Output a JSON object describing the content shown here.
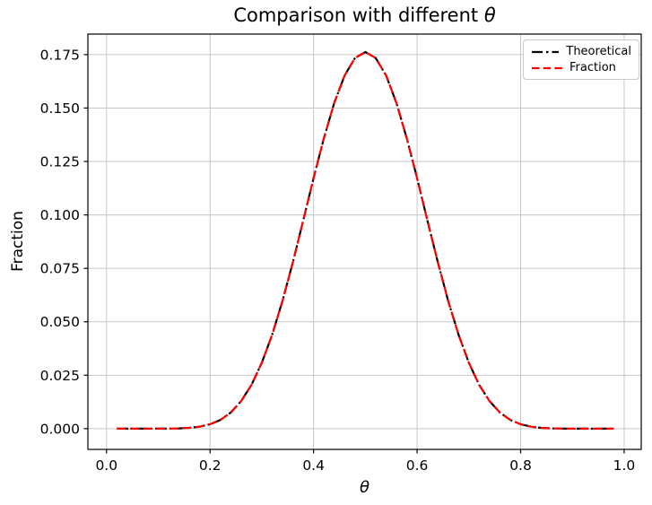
{
  "title": {
    "prefix": "Comparison with different ",
    "symbol": "θ"
  },
  "chart_data": {
    "type": "line",
    "title": "Comparison with different θ",
    "xlabel": "θ",
    "ylabel": "Fraction",
    "xlim": [
      -0.036,
      1.033
    ],
    "ylim": [
      -0.0097,
      0.1846
    ],
    "grid": true,
    "grid_color": "#c6c6c6",
    "spine_color": "#000000",
    "background": "#ffffff",
    "legend_position": "upper right",
    "xticks": [
      0.0,
      0.2,
      0.4,
      0.6,
      0.8,
      1.0
    ],
    "xtick_labels": [
      "0.0",
      "0.2",
      "0.4",
      "0.6",
      "0.8",
      "1.0"
    ],
    "yticks": [
      0.0,
      0.025,
      0.05,
      0.075,
      0.1,
      0.125,
      0.15,
      0.175
    ],
    "ytick_labels": [
      "0.000",
      "0.025",
      "0.050",
      "0.075",
      "0.100",
      "0.125",
      "0.150",
      "0.175"
    ],
    "x": [
      0.02,
      0.04,
      0.06,
      0.08,
      0.1,
      0.12,
      0.14,
      0.16,
      0.18,
      0.2,
      0.22,
      0.24,
      0.26,
      0.28,
      0.3,
      0.32,
      0.34,
      0.36,
      0.38,
      0.4,
      0.42,
      0.44,
      0.46,
      0.48,
      0.5,
      0.52,
      0.54,
      0.56,
      0.58,
      0.6,
      0.62,
      0.64,
      0.66,
      0.68,
      0.7,
      0.72,
      0.74,
      0.76,
      0.78,
      0.8,
      0.82,
      0.84,
      0.86,
      0.88,
      0.9,
      0.92,
      0.94,
      0.96,
      0.98
    ],
    "series": [
      {
        "name": "Theoretical",
        "color": "#000000",
        "linestyle": "dashdot",
        "linewidth": 2.2,
        "values": [
          0,
          0,
          0,
          1e-06,
          6e-06,
          3.2e-05,
          0.000118,
          0.000355,
          0.000906,
          0.002031,
          0.00409,
          0.007529,
          0.012853,
          0.020475,
          0.030817,
          0.043971,
          0.059813,
          0.077888,
          0.097353,
          0.117142,
          0.135953,
          0.152412,
          0.165239,
          0.173397,
          0.176197,
          0.173397,
          0.165239,
          0.152412,
          0.135953,
          0.117142,
          0.097353,
          0.077888,
          0.059813,
          0.043971,
          0.030817,
          0.020475,
          0.012853,
          0.007529,
          0.00409,
          0.002031,
          0.000906,
          0.000355,
          0.000118,
          3.2e-05,
          6e-06,
          1e-06,
          0,
          0,
          0
        ]
      },
      {
        "name": "Fraction",
        "color": "#ff0000",
        "linestyle": "dashed",
        "linewidth": 2.2,
        "values": [
          0,
          0,
          0,
          1e-06,
          6e-06,
          3.2e-05,
          0.000118,
          0.000355,
          0.000906,
          0.002031,
          0.00409,
          0.007529,
          0.012853,
          0.020475,
          0.030817,
          0.043971,
          0.059813,
          0.077888,
          0.097353,
          0.117142,
          0.135953,
          0.152412,
          0.165239,
          0.173397,
          0.176197,
          0.173397,
          0.165239,
          0.152412,
          0.135953,
          0.117142,
          0.097353,
          0.077888,
          0.059813,
          0.043971,
          0.030817,
          0.020475,
          0.012853,
          0.007529,
          0.00409,
          0.002031,
          0.000906,
          0.000355,
          0.000118,
          3.2e-05,
          6e-06,
          1e-06,
          0,
          0,
          0
        ]
      }
    ]
  }
}
